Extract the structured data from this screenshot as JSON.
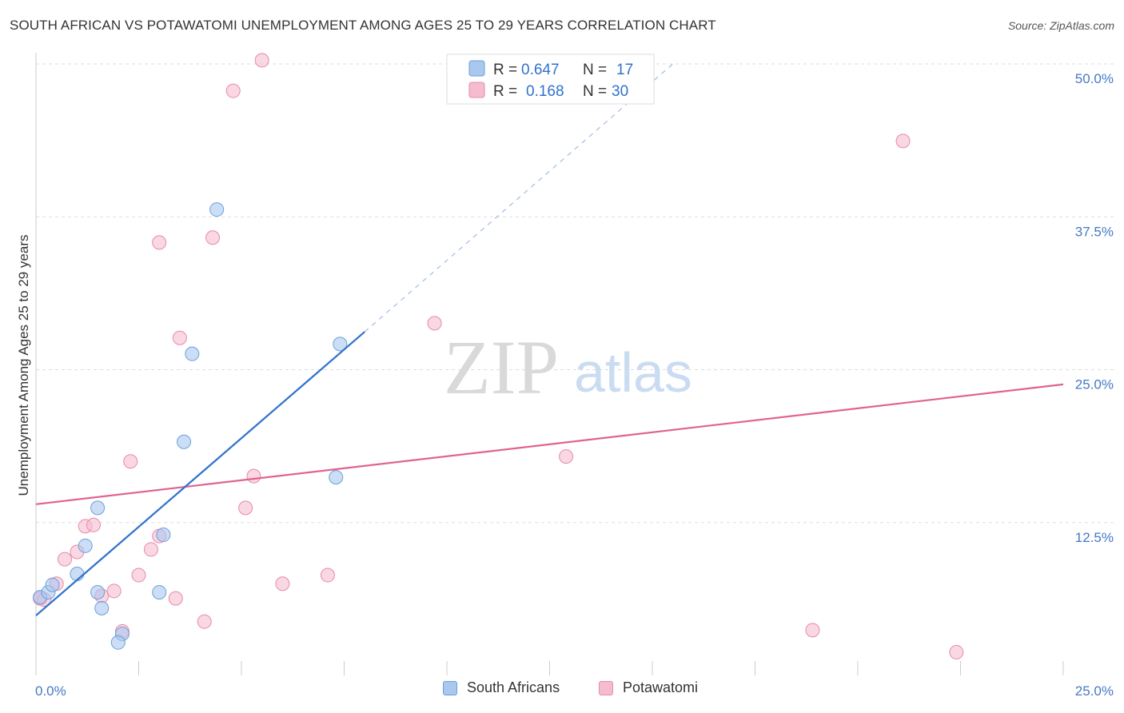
{
  "title": "SOUTH AFRICAN VS POTAWATOMI UNEMPLOYMENT AMONG AGES 25 TO 29 YEARS CORRELATION CHART",
  "source": "Source: ZipAtlas.com",
  "watermark": {
    "zip": "ZIP",
    "atlas": "atlas"
  },
  "colors": {
    "blue_fill": "#aac8ee",
    "blue_stroke": "#6a9fdc",
    "blue_line": "#2f72cc",
    "pink_fill": "#f5bcd0",
    "pink_stroke": "#e88aaa",
    "pink_line": "#e0638f",
    "tick_label": "#4479c4",
    "grid": "#dddddd",
    "axis_title": "#333333"
  },
  "legend": {
    "series": [
      {
        "r_label": "R = ",
        "r_value": "0.647",
        "n_label": "N = ",
        "n_value": "17"
      },
      {
        "r_label": "R = ",
        "r_value": "0.168",
        "n_label": "N = ",
        "n_value": "30"
      }
    ]
  },
  "chart_data": {
    "type": "scatter",
    "title": "SOUTH AFRICAN VS POTAWATOMI UNEMPLOYMENT AMONG AGES 25 TO 29 YEARS CORRELATION CHART",
    "xlabel": "",
    "ylabel": "Unemployment Among Ages 25 to 29 years",
    "xlim": [
      0,
      25
    ],
    "ylim": [
      0,
      50
    ],
    "x_tick_labels": [
      "0.0%",
      "25.0%"
    ],
    "y_ticks": [
      12.5,
      25.0,
      37.5,
      50.0
    ],
    "y_tick_labels": [
      "12.5%",
      "25.0%",
      "37.5%",
      "50.0%"
    ],
    "grid": true,
    "legend_position": "top-center",
    "series": [
      {
        "name": "South Africans",
        "color": "#aac8ee",
        "r": 0.647,
        "n": 17,
        "points": [
          [
            0.1,
            6.4
          ],
          [
            0.3,
            6.8
          ],
          [
            0.4,
            7.4
          ],
          [
            1.0,
            8.3
          ],
          [
            1.2,
            10.6
          ],
          [
            1.5,
            13.7
          ],
          [
            1.5,
            6.8
          ],
          [
            1.6,
            5.5
          ],
          [
            2.1,
            3.4
          ],
          [
            2.0,
            2.7
          ],
          [
            3.0,
            6.8
          ],
          [
            3.1,
            11.5
          ],
          [
            3.6,
            19.1
          ],
          [
            3.8,
            26.3
          ],
          [
            4.4,
            38.1
          ],
          [
            7.3,
            16.2
          ],
          [
            7.4,
            27.1
          ]
        ],
        "trendline": {
          "x": [
            0.0,
            8.0
          ],
          "y": [
            4.9,
            28.1
          ]
        },
        "trend_extension": {
          "x": [
            8.0,
            15.5
          ],
          "y": [
            28.1,
            50.0
          ]
        }
      },
      {
        "name": "Potawatomi",
        "color": "#f5bcd0",
        "r": 0.168,
        "n": 30,
        "points": [
          [
            0.1,
            6.3
          ],
          [
            0.2,
            6.2
          ],
          [
            0.5,
            7.5
          ],
          [
            0.7,
            9.5
          ],
          [
            1.0,
            10.1
          ],
          [
            1.2,
            12.2
          ],
          [
            1.4,
            12.3
          ],
          [
            1.6,
            6.5
          ],
          [
            1.9,
            6.9
          ],
          [
            2.1,
            3.6
          ],
          [
            2.3,
            17.5
          ],
          [
            2.5,
            8.2
          ],
          [
            2.8,
            10.3
          ],
          [
            3.0,
            11.4
          ],
          [
            3.0,
            35.4
          ],
          [
            3.4,
            6.3
          ],
          [
            3.5,
            27.6
          ],
          [
            4.1,
            4.4
          ],
          [
            4.3,
            35.8
          ],
          [
            4.8,
            47.8
          ],
          [
            5.1,
            13.7
          ],
          [
            5.3,
            16.3
          ],
          [
            5.5,
            50.3
          ],
          [
            6.0,
            7.5
          ],
          [
            7.1,
            8.2
          ],
          [
            9.7,
            28.8
          ],
          [
            12.9,
            17.9
          ],
          [
            18.9,
            3.7
          ],
          [
            21.1,
            43.7
          ],
          [
            22.4,
            1.9
          ]
        ],
        "trendline": {
          "x": [
            0.0,
            25.0
          ],
          "y": [
            14.0,
            23.8
          ]
        }
      }
    ]
  }
}
